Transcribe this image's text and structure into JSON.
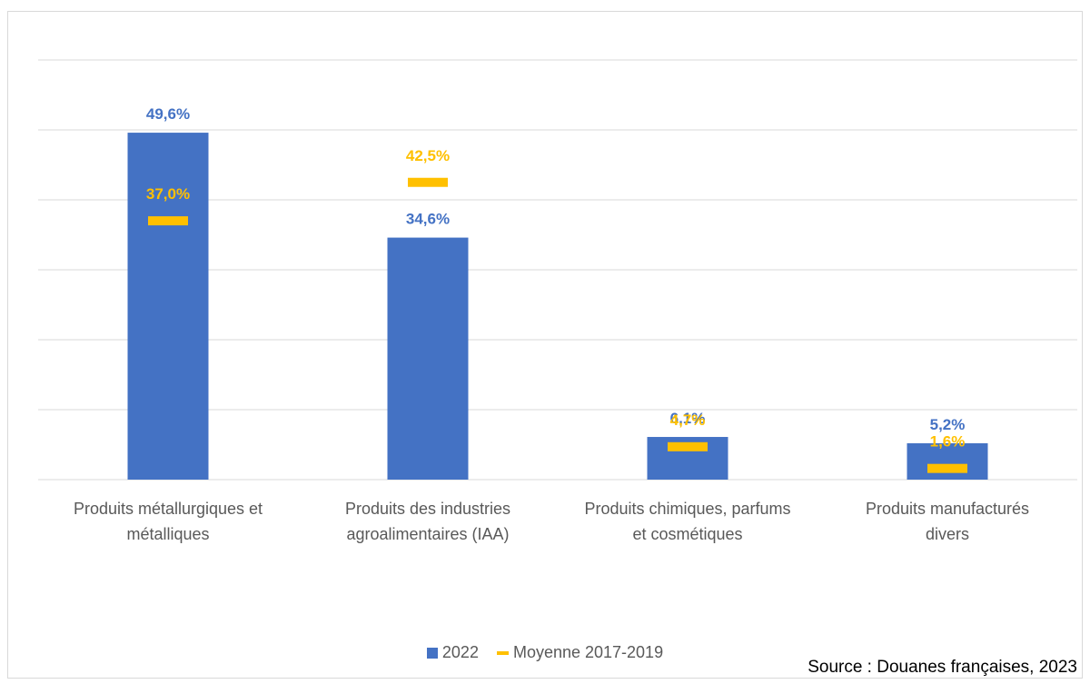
{
  "chart_data": {
    "type": "bar",
    "categories": [
      [
        "Produits métallurgiques et",
        "métalliques"
      ],
      [
        "Produits des industries",
        "agroalimentaires (IAA)"
      ],
      [
        "Produits chimiques, parfums",
        "et cosmétiques"
      ],
      [
        "Produits manufacturés",
        "divers"
      ]
    ],
    "series": [
      {
        "name": "2022",
        "kind": "bar",
        "color": "#4472c4",
        "values": [
          49.6,
          34.6,
          6.1,
          5.2
        ],
        "labels": [
          "49,6%",
          "34,6%",
          "6,1%",
          "5,2%"
        ]
      },
      {
        "name": "Moyenne 2017-2019",
        "kind": "marker",
        "color": "#ffc000",
        "values": [
          37.0,
          42.5,
          4.7,
          1.6
        ],
        "labels": [
          "37,0%",
          "42,5%",
          "4,7%",
          "1,6%"
        ]
      }
    ],
    "ylim": [
      0,
      60
    ],
    "grid": true,
    "legend_position": "bottom"
  },
  "legend": {
    "series1": "2022",
    "series2": "Moyenne 2017-2019"
  },
  "source": "Source : Douanes françaises, 2023"
}
